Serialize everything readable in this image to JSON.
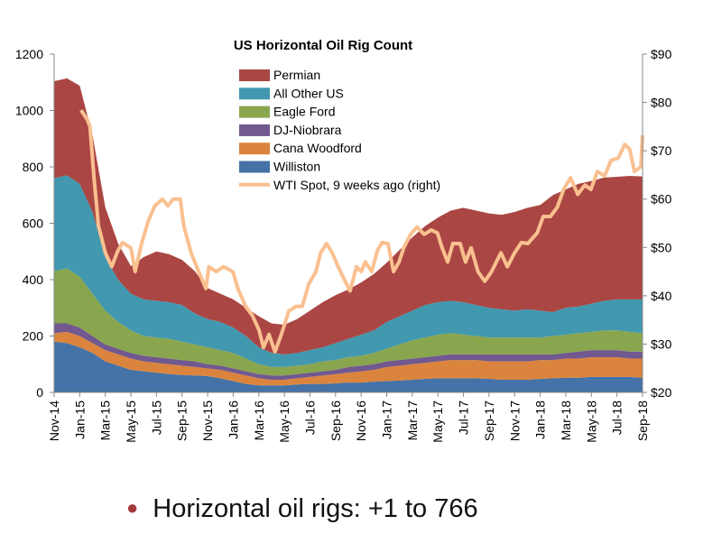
{
  "chart_data": {
    "type": "area",
    "stacked": true,
    "title": "US Horizontal Oil Rig Count",
    "xlabel": "",
    "ylabel": "",
    "ylim": [
      0,
      1200
    ],
    "yticks": [
      "0",
      "200",
      "400",
      "600",
      "800",
      "1000",
      "1200"
    ],
    "y2lim": [
      20,
      90
    ],
    "y2ticks": [
      "$20",
      "$30",
      "$40",
      "$50",
      "$60",
      "$70",
      "$80",
      "$90"
    ],
    "legend_position": "top-center",
    "grid": false,
    "categories": [
      "Nov-14",
      "Dec-14",
      "Jan-15",
      "Feb-15",
      "Mar-15",
      "Apr-15",
      "May-15",
      "Jun-15",
      "Jul-15",
      "Aug-15",
      "Sep-15",
      "Oct-15",
      "Nov-15",
      "Dec-15",
      "Jan-16",
      "Feb-16",
      "Mar-16",
      "Apr-16",
      "May-16",
      "Jun-16",
      "Jul-16",
      "Aug-16",
      "Sep-16",
      "Oct-16",
      "Nov-16",
      "Dec-16",
      "Jan-17",
      "Feb-17",
      "Mar-17",
      "Apr-17",
      "May-17",
      "Jun-17",
      "Jul-17",
      "Aug-17",
      "Sep-17",
      "Oct-17",
      "Nov-17",
      "Dec-17",
      "Jan-18",
      "Feb-18",
      "Mar-18",
      "Apr-18",
      "May-18",
      "Jun-18",
      "Jul-18",
      "Aug-18",
      "Sep-18"
    ],
    "xticks": [
      "Nov-14",
      "Jan-15",
      "Mar-15",
      "May-15",
      "Jul-15",
      "Sep-15",
      "Nov-15",
      "Jan-16",
      "Mar-16",
      "May-16",
      "Jul-16",
      "Sep-16",
      "Nov-16",
      "Jan-17",
      "Mar-17",
      "May-17",
      "Jul-17",
      "Sep-17",
      "Nov-17",
      "Jan-18",
      "Mar-18",
      "May-18",
      "Jul-18",
      "Sep-18"
    ],
    "series": [
      {
        "name": "Williston",
        "color": "#4572A7",
        "values": [
          180,
          175,
          160,
          140,
          110,
          95,
          80,
          75,
          70,
          65,
          62,
          60,
          58,
          50,
          40,
          30,
          25,
          25,
          25,
          28,
          30,
          30,
          32,
          35,
          35,
          38,
          40,
          42,
          45,
          48,
          50,
          50,
          50,
          50,
          48,
          45,
          45,
          45,
          48,
          50,
          52,
          52,
          55,
          55,
          55,
          55,
          52
        ]
      },
      {
        "name": "Cana Woodford",
        "color": "#DB843D",
        "values": [
          30,
          40,
          40,
          35,
          40,
          40,
          40,
          35,
          35,
          35,
          33,
          30,
          27,
          30,
          30,
          30,
          25,
          20,
          20,
          22,
          25,
          30,
          33,
          35,
          40,
          42,
          50,
          53,
          55,
          57,
          60,
          65,
          65,
          65,
          62,
          65,
          65,
          65,
          67,
          65,
          68,
          68,
          70,
          70,
          70,
          65,
          68
        ]
      },
      {
        "name": "DJ-Niobrara",
        "color": "#71588F",
        "values": [
          35,
          30,
          30,
          25,
          20,
          20,
          20,
          20,
          20,
          20,
          20,
          20,
          15,
          15,
          15,
          15,
          15,
          15,
          15,
          15,
          15,
          15,
          15,
          20,
          20,
          20,
          20,
          20,
          20,
          20,
          20,
          20,
          20,
          20,
          25,
          25,
          25,
          25,
          20,
          20,
          20,
          25,
          25,
          25,
          25,
          25,
          25
        ]
      },
      {
        "name": "Eagle Ford",
        "color": "#89A54E",
        "values": [
          185,
          195,
          180,
          150,
          120,
          95,
          80,
          70,
          70,
          70,
          65,
          60,
          60,
          55,
          55,
          45,
          35,
          30,
          30,
          30,
          30,
          35,
          35,
          35,
          35,
          40,
          45,
          55,
          65,
          70,
          75,
          75,
          70,
          65,
          60,
          60,
          60,
          60,
          60,
          65,
          65,
          65,
          65,
          70,
          70,
          70,
          65
        ]
      },
      {
        "name": "All Other US",
        "color": "#4198AF",
        "values": [
          330,
          330,
          330,
          290,
          190,
          150,
          130,
          130,
          130,
          130,
          130,
          110,
          100,
          100,
          90,
          80,
          60,
          50,
          45,
          45,
          50,
          50,
          60,
          65,
          75,
          80,
          95,
          100,
          105,
          115,
          115,
          115,
          115,
          110,
          105,
          100,
          95,
          100,
          95,
          85,
          95,
          95,
          100,
          105,
          110,
          115,
          120
        ]
      },
      {
        "name": "Permian",
        "color": "#AA4643",
        "values": [
          344,
          344,
          348,
          272,
          176,
          128,
          98,
          150,
          175,
          170,
          160,
          150,
          110,
          100,
          100,
          100,
          110,
          105,
          105,
          120,
          140,
          160,
          170,
          175,
          185,
          200,
          210,
          235,
          260,
          280,
          300,
          320,
          335,
          335,
          335,
          335,
          350,
          360,
          375,
          415,
          420,
          435,
          435,
          437,
          435,
          438,
          436
        ]
      }
    ],
    "line_series": {
      "name": "WTI Spot, 9 weeks ago (right)",
      "color": "#FAC090",
      "axis": "right",
      "points": [
        [
          "2015-01-04",
          78.4
        ],
        [
          "2015-01-19",
          76.4
        ],
        [
          "2015-01-25",
          75
        ],
        [
          "2015-02-05",
          63.9
        ],
        [
          "2015-02-15",
          54.5
        ],
        [
          "2015-03-01",
          48.9
        ],
        [
          "2015-03-16",
          46
        ],
        [
          "2015-03-29",
          49
        ],
        [
          "2015-04-11",
          51
        ],
        [
          "2015-05-01",
          49.9
        ],
        [
          "2015-05-11",
          45
        ],
        [
          "2015-05-26",
          50.8
        ],
        [
          "2015-06-12",
          55.5
        ],
        [
          "2015-06-27",
          58.6
        ],
        [
          "2015-07-15",
          60
        ],
        [
          "2015-07-28",
          58.6
        ],
        [
          "2015-08-10",
          60
        ],
        [
          "2015-08-27",
          60
        ],
        [
          "2015-09-05",
          54.5
        ],
        [
          "2015-09-22",
          48.9
        ],
        [
          "2015-10-09",
          45.2
        ],
        [
          "2015-10-27",
          41.5
        ],
        [
          "2015-11-04",
          46
        ],
        [
          "2015-11-21",
          45
        ],
        [
          "2015-12-08",
          46
        ],
        [
          "2015-12-30",
          45
        ],
        [
          "2016-01-12",
          41.5
        ],
        [
          "2016-01-30",
          37.8
        ],
        [
          "2016-02-16",
          35.9
        ],
        [
          "2016-03-01",
          33
        ],
        [
          "2016-03-12",
          29.3
        ],
        [
          "2016-03-25",
          32
        ],
        [
          "2016-04-09",
          28.4
        ],
        [
          "2016-04-24",
          32
        ],
        [
          "2016-05-11",
          36.8
        ],
        [
          "2016-05-28",
          37.8
        ],
        [
          "2016-06-13",
          37.8
        ],
        [
          "2016-06-28",
          42.4
        ],
        [
          "2016-07-15",
          45
        ],
        [
          "2016-07-26",
          48.9
        ],
        [
          "2016-08-10",
          50.8
        ],
        [
          "2016-08-23",
          48.9
        ],
        [
          "2016-09-07",
          46
        ],
        [
          "2016-09-22",
          43.3
        ],
        [
          "2016-10-05",
          41
        ],
        [
          "2016-10-20",
          46
        ],
        [
          "2016-10-31",
          45
        ],
        [
          "2016-11-11",
          47
        ],
        [
          "2016-11-26",
          45
        ],
        [
          "2016-12-09",
          49.3
        ],
        [
          "2016-12-20",
          51
        ],
        [
          "2017-01-04",
          50.8
        ],
        [
          "2017-01-17",
          45
        ],
        [
          "2017-01-30",
          47
        ],
        [
          "2017-02-11",
          49.9
        ],
        [
          "2017-02-27",
          52.7
        ],
        [
          "2017-03-12",
          54.2
        ],
        [
          "2017-03-29",
          52.7
        ],
        [
          "2017-04-15",
          53.6
        ],
        [
          "2017-04-30",
          53
        ],
        [
          "2017-05-11",
          49.9
        ],
        [
          "2017-05-24",
          47
        ],
        [
          "2017-06-06",
          50.8
        ],
        [
          "2017-06-23",
          50.8
        ],
        [
          "2017-07-06",
          47
        ],
        [
          "2017-07-19",
          49.9
        ],
        [
          "2017-08-05",
          45
        ],
        [
          "2017-08-21",
          43
        ],
        [
          "2017-09-07",
          45
        ],
        [
          "2017-09-29",
          48.9
        ],
        [
          "2017-10-14",
          46
        ],
        [
          "2017-10-31",
          48.9
        ],
        [
          "2017-11-17",
          51
        ],
        [
          "2017-12-02",
          50.8
        ],
        [
          "2017-12-24",
          53
        ],
        [
          "2018-01-08",
          56.4
        ],
        [
          "2018-01-25",
          56.4
        ],
        [
          "2018-02-11",
          58.3
        ],
        [
          "2018-02-26",
          62
        ],
        [
          "2018-03-12",
          64.4
        ],
        [
          "2018-03-29",
          61
        ],
        [
          "2018-04-16",
          62.9
        ],
        [
          "2018-04-30",
          62
        ],
        [
          "2018-05-15",
          65.7
        ],
        [
          "2018-06-02",
          64.8
        ],
        [
          "2018-06-17",
          68
        ],
        [
          "2018-07-04",
          68.5
        ],
        [
          "2018-07-19",
          71.3
        ],
        [
          "2018-08-01",
          70.3
        ],
        [
          "2018-08-12",
          65.7
        ],
        [
          "2018-08-27",
          66.7
        ],
        [
          "2018-09-01",
          73.2
        ]
      ]
    },
    "legend_order": [
      "Permian",
      "All Other US",
      "Eagle Ford",
      "DJ-Niobrara",
      "Cana Woodford",
      "Williston",
      "WTI Spot, 9 weeks ago (right)"
    ]
  },
  "bullet": {
    "text": "Horizontal oil rigs: +1 to 766",
    "color": "#A13A3A"
  }
}
